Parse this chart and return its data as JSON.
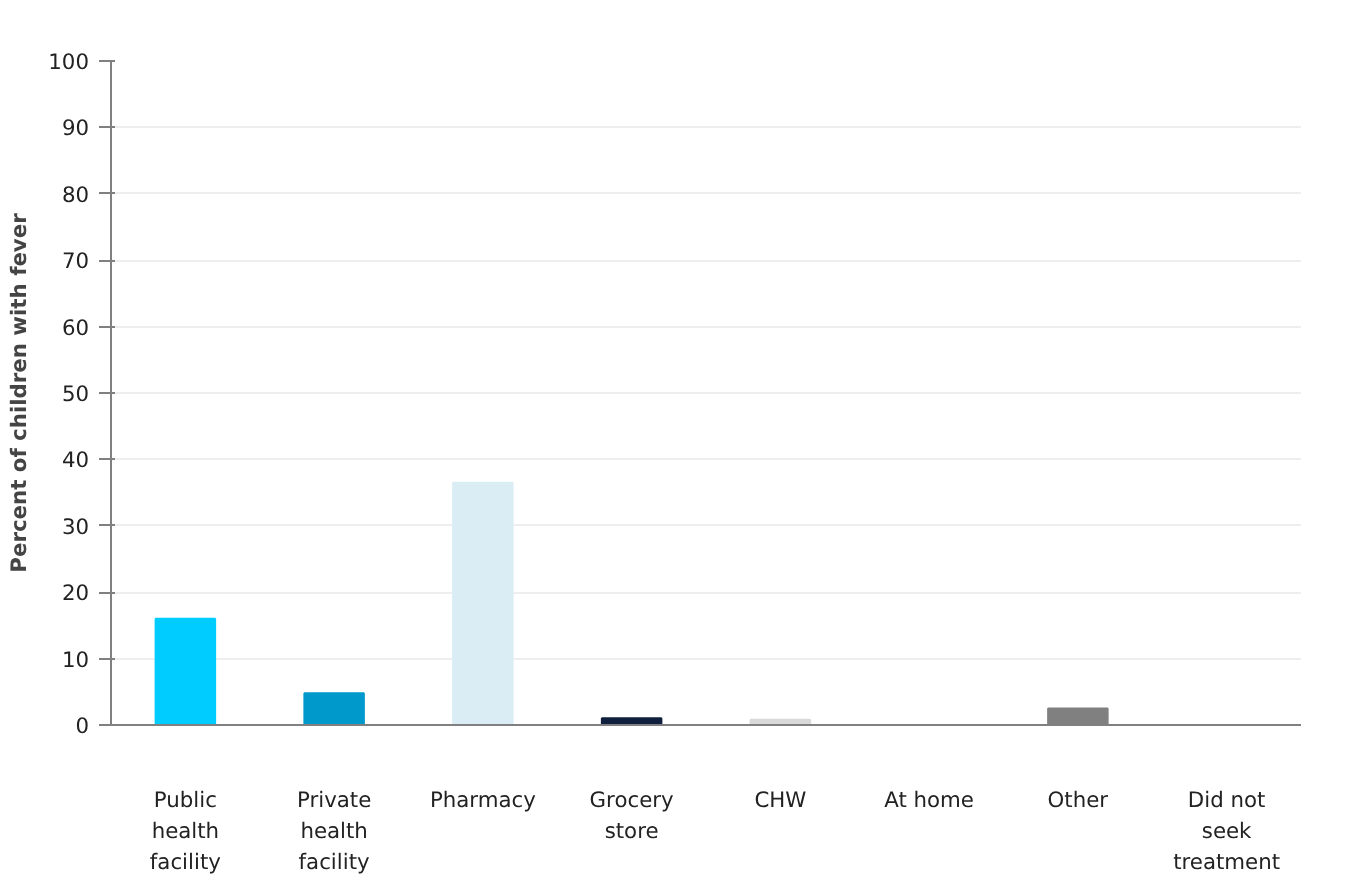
{
  "chart_data": {
    "type": "bar",
    "ylabel": "Percent of children with fever",
    "categories": [
      "Public health facility",
      "Private health facility",
      "Pharmacy",
      "Grocery store",
      "CHW",
      "At home",
      "Other",
      "Did not seek treatment"
    ],
    "values": [
      16,
      4.8,
      36.5,
      1,
      0.8,
      null,
      2.5,
      0
    ],
    "colors": [
      "#00ccff",
      "#0099cc",
      "#daedf4",
      "#0f1f3d",
      "#d9d9d9",
      "#ffffff",
      "#808080",
      "#404040"
    ],
    "ylim": [
      0,
      100
    ],
    "yticks": [
      0,
      10,
      20,
      30,
      40,
      50,
      60,
      70,
      80,
      90,
      100
    ],
    "grid": "y"
  }
}
